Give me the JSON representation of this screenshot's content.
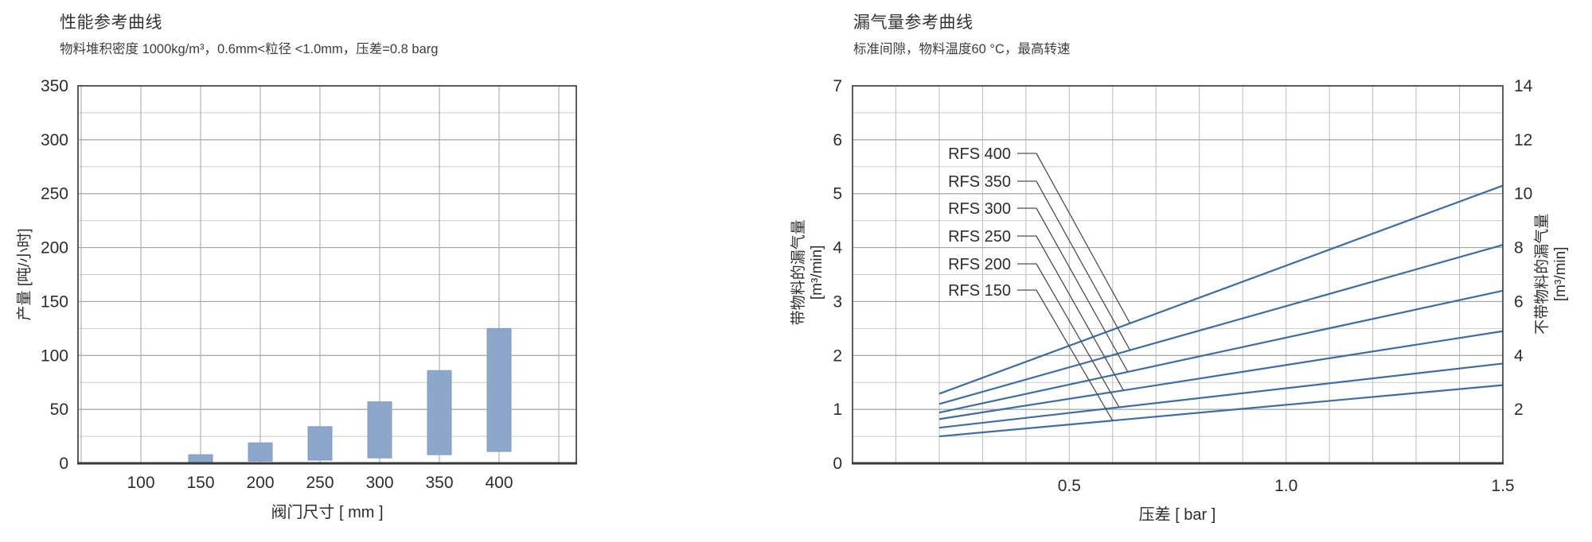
{
  "page": {
    "background": "#ffffff"
  },
  "chart_data": [
    {
      "type": "bar",
      "title": "性能参考曲线",
      "subtitle": "物料堆积密度 1000kg/m³，0.6mm<粒径 <1.0mm，压差=0.8 barg",
      "xlabel": "阀门尺寸 [ mm ]",
      "ylabel": "产量 [吨/小时]",
      "categories": [
        100,
        150,
        200,
        250,
        300,
        350,
        400
      ],
      "bar_low": [
        null,
        0,
        2,
        3,
        5,
        8,
        11
      ],
      "bar_high": [
        null,
        8,
        19,
        34,
        57,
        86,
        125
      ],
      "x_ticks": [
        100,
        150,
        200,
        250,
        300,
        350,
        400
      ],
      "y_ticks": [
        0,
        50,
        100,
        150,
        200,
        250,
        300,
        350
      ],
      "ylim": [
        0,
        350
      ],
      "y_major_step": 50,
      "y_minor_step": 25,
      "x_grid_step": 50,
      "bar_color": "#8ca7c9",
      "bar_edge_color": "#7f9dc1",
      "grid": true,
      "legend": "none"
    },
    {
      "type": "line",
      "title": "漏气量参考曲线",
      "subtitle": "标准间隙，物料温度60 °C，最高转速",
      "xlabel": "压差 [ bar ]",
      "ylabel_left": [
        "带物料的漏气量",
        "[m³/min]"
      ],
      "ylabel_right": [
        "不带物料的漏气量",
        "[m³/min]"
      ],
      "xlim": [
        0,
        1.5
      ],
      "ylim_left": [
        0,
        7
      ],
      "ylim_right": [
        0,
        14
      ],
      "x_tick_labels": [
        "0.5",
        "1.0",
        "1.5"
      ],
      "x_tick_values": [
        0.5,
        1.0,
        1.5
      ],
      "x_grid_step": 0.1,
      "y_ticks_left": [
        0,
        1,
        2,
        3,
        4,
        5,
        6,
        7
      ],
      "y_ticks_right": [
        2,
        4,
        6,
        8,
        10,
        12,
        14
      ],
      "y_minor_step": 0.5,
      "y_major_step": 1,
      "line_color": "#3d6da8",
      "leader_line_color": "#4f4f4f",
      "series": [
        {
          "name": "RFS 400",
          "x": [
            0.2,
            1.5
          ],
          "y": [
            1.29,
            5.15
          ],
          "leader_x": 0.64
        },
        {
          "name": "RFS 350",
          "x": [
            0.2,
            1.5
          ],
          "y": [
            1.1,
            4.05
          ],
          "leader_x": 0.64
        },
        {
          "name": "RFS 300",
          "x": [
            0.2,
            1.5
          ],
          "y": [
            0.94,
            3.2
          ],
          "leader_x": 0.635
        },
        {
          "name": "RFS 250",
          "x": [
            0.2,
            1.5
          ],
          "y": [
            0.82,
            2.45
          ],
          "leader_x": 0.625
        },
        {
          "name": "RFS 200",
          "x": [
            0.2,
            1.5
          ],
          "y": [
            0.66,
            1.85
          ],
          "leader_x": 0.615
        },
        {
          "name": "RFS 150",
          "x": [
            0.2,
            1.5
          ],
          "y": [
            0.5,
            1.45
          ],
          "leader_x": 0.6
        }
      ],
      "grid": true,
      "legend": "inline-annotations"
    }
  ]
}
